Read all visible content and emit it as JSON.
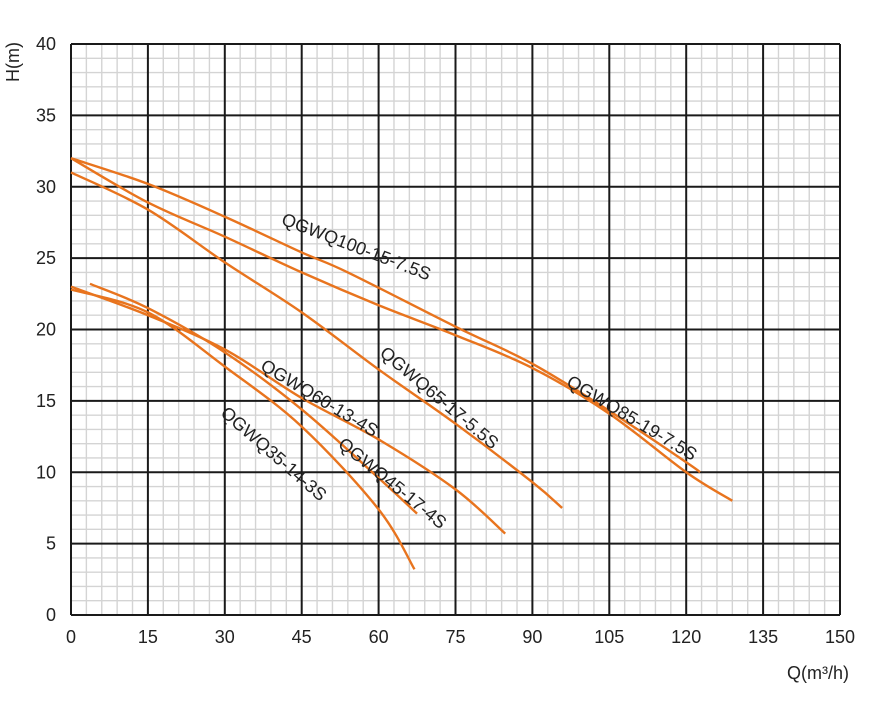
{
  "chart_data": {
    "type": "line",
    "title": "",
    "xlabel": "Q(m³/h)",
    "ylabel": "H(m)",
    "xlim": [
      0,
      150
    ],
    "ylim": [
      0,
      40
    ],
    "x_ticks": [
      0,
      15,
      30,
      45,
      60,
      75,
      90,
      105,
      120,
      135,
      150
    ],
    "y_ticks": [
      0,
      5,
      10,
      15,
      20,
      25,
      30,
      35,
      40
    ],
    "grid": true,
    "minor_grid": true,
    "colors": {
      "curve": "#E8741E",
      "major_grid": "#1a1a1a",
      "minor_grid": "#d4d4d4"
    },
    "series": [
      {
        "name": "QGWQ100-15-7.5S",
        "points": [
          [
            0,
            32
          ],
          [
            15,
            30.2
          ],
          [
            30,
            27.9
          ],
          [
            45,
            25.4
          ],
          [
            54,
            24
          ],
          [
            75,
            20.2
          ],
          [
            90,
            17.6
          ],
          [
            105,
            14.3
          ],
          [
            120,
            10.7
          ],
          [
            122.7,
            10
          ]
        ]
      },
      {
        "name": "QGWQ85-19-7.5S",
        "points": [
          [
            0,
            32
          ],
          [
            15,
            28.9
          ],
          [
            30,
            26.5
          ],
          [
            45,
            24
          ],
          [
            60,
            21.7
          ],
          [
            75,
            19.6
          ],
          [
            90,
            17.3
          ],
          [
            105,
            14.1
          ],
          [
            120,
            10
          ],
          [
            129,
            8
          ]
        ]
      },
      {
        "name": "QGWQ65-17-5.5S",
        "points": [
          [
            0,
            31
          ],
          [
            15,
            28.4
          ],
          [
            30,
            24.7
          ],
          [
            45,
            21.2
          ],
          [
            60,
            17.2
          ],
          [
            75,
            13.4
          ],
          [
            90,
            9.3
          ],
          [
            95.8,
            7.5
          ]
        ]
      },
      {
        "name": "QGWQ60-13-4S",
        "points": [
          [
            0,
            23
          ],
          [
            15,
            21
          ],
          [
            30,
            18.6
          ],
          [
            45,
            15.2
          ],
          [
            60,
            12.3
          ],
          [
            75,
            8.8
          ],
          [
            84.7,
            5.7
          ]
        ]
      },
      {
        "name": "QGWQ45-17-4S",
        "points": [
          [
            3.7,
            23.2
          ],
          [
            15,
            21.5
          ],
          [
            30,
            18.4
          ],
          [
            45,
            14.4
          ],
          [
            60,
            9.6
          ],
          [
            67.5,
            7.1
          ]
        ]
      },
      {
        "name": "QGWQ35-14-3S",
        "points": [
          [
            0,
            22.8
          ],
          [
            15,
            21.2
          ],
          [
            30,
            17.4
          ],
          [
            45,
            13.2
          ],
          [
            60,
            7.4
          ],
          [
            67,
            3.2
          ]
        ]
      }
    ]
  }
}
